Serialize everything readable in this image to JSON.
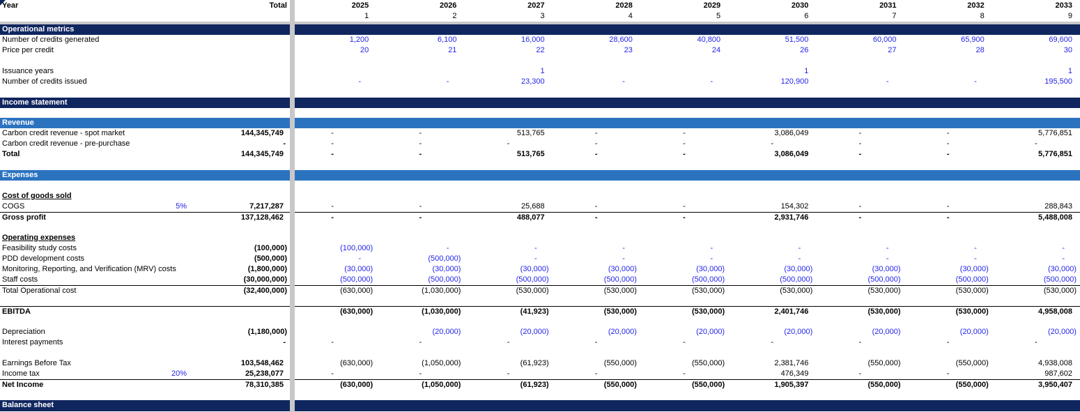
{
  "theme": {
    "navy": "#10265F",
    "blue_bar": "#2B73BF",
    "blue_text": "#2424EA",
    "freeze_divider_gray": "#C8C8C8"
  },
  "header": {
    "year_label": "Year",
    "total_label": "Total",
    "years": [
      "2025",
      "2026",
      "2027",
      "2028",
      "2029",
      "2030",
      "2031",
      "2032",
      "2033"
    ],
    "indices": [
      "1",
      "2",
      "3",
      "4",
      "5",
      "6",
      "7",
      "8",
      "9"
    ]
  },
  "rows": [
    {
      "type": "section",
      "name": "section-operational-metrics",
      "label": "Operational metrics"
    },
    {
      "type": "row",
      "name": "number-of-credits-generated",
      "label": "Number of credits generated",
      "color": "blue",
      "values": [
        "1,200",
        "6,100",
        "16,000",
        "28,600",
        "40,800",
        "51,500",
        "60,000",
        "65,900",
        "69,600"
      ]
    },
    {
      "type": "row",
      "name": "price-per-credit",
      "label": "Price per credit",
      "color": "blue",
      "values": [
        "20",
        "21",
        "22",
        "23",
        "24",
        "26",
        "27",
        "28",
        "30"
      ]
    },
    {
      "type": "blank",
      "name": "spacer"
    },
    {
      "type": "row",
      "name": "issuance-years",
      "label": "Issuance years",
      "color": "blue",
      "values": [
        "",
        "",
        "1",
        "",
        "",
        "1",
        "",
        "",
        "1"
      ]
    },
    {
      "type": "row",
      "name": "number-of-credits-issued",
      "label": "Number of credits issued",
      "color": "blue",
      "values": [
        "-",
        "-",
        "23,300",
        "-",
        "-",
        "120,900",
        "-",
        "-",
        "195,500"
      ]
    },
    {
      "type": "blank",
      "name": "spacer"
    },
    {
      "type": "section",
      "name": "section-income-statement",
      "label": "Income statement"
    },
    {
      "type": "blank",
      "name": "spacer",
      "height": 14
    },
    {
      "type": "subsection",
      "name": "subsection-revenue",
      "label": "Revenue"
    },
    {
      "type": "row",
      "name": "carbon-credit-revenue-spot-market",
      "label": "Carbon credit revenue - spot market",
      "total": "144,345,749",
      "values": [
        "-",
        "-",
        "513,765",
        "-",
        "-",
        "3,086,049",
        "-",
        "-",
        "5,776,851"
      ]
    },
    {
      "type": "row",
      "name": "carbon-credit-revenue-pre-purchase",
      "label": "Carbon credit revenue - pre-purchase",
      "total": "-",
      "values": [
        "-",
        "-",
        "-",
        "-",
        "-",
        "-",
        "-",
        "-",
        "-"
      ]
    },
    {
      "type": "row",
      "name": "revenue-total",
      "label": "Total",
      "label_bold": true,
      "bold": true,
      "total": "144,345,749",
      "values": [
        "-",
        "-",
        "513,765",
        "-",
        "-",
        "3,086,049",
        "-",
        "-",
        "5,776,851"
      ]
    },
    {
      "type": "blank",
      "name": "spacer"
    },
    {
      "type": "subsection",
      "name": "subsection-expenses",
      "label": "Expenses"
    },
    {
      "type": "blank",
      "name": "spacer"
    },
    {
      "type": "row",
      "name": "cost-of-goods-sold-heading",
      "label": "Cost of goods sold",
      "label_bold": true,
      "label_underline": true,
      "values": [
        "",
        "",
        "",
        "",
        "",
        "",
        "",
        "",
        ""
      ]
    },
    {
      "type": "row",
      "name": "cogs",
      "label": "COGS",
      "pct": "5%",
      "total": "7,217,287",
      "values": [
        "-",
        "-",
        "25,688",
        "-",
        "-",
        "154,302",
        "-",
        "-",
        "288,843"
      ]
    },
    {
      "type": "row",
      "name": "gross-profit",
      "label": "Gross profit",
      "label_bold": true,
      "bold": true,
      "border_top": true,
      "total": "137,128,462",
      "values": [
        "-",
        "-",
        "488,077",
        "-",
        "-",
        "2,931,746",
        "-",
        "-",
        "5,488,008"
      ]
    },
    {
      "type": "blank",
      "name": "spacer"
    },
    {
      "type": "row",
      "name": "operating-expenses-heading",
      "label": "Operating expenses",
      "label_bold": true,
      "label_underline": true,
      "values": [
        "",
        "",
        "",
        "",
        "",
        "",
        "",
        "",
        ""
      ]
    },
    {
      "type": "row",
      "name": "feasibility-study-costs",
      "label": "Feasibility study costs",
      "color": "blue",
      "total": "(100,000)",
      "values": [
        "(100,000)",
        "-",
        "-",
        "-",
        "-",
        "-",
        "-",
        "-",
        "-"
      ]
    },
    {
      "type": "row",
      "name": "pdd-development-costs",
      "label": "PDD development costs",
      "color": "blue",
      "total": "(500,000)",
      "values": [
        "-",
        "(500,000)",
        "-",
        "-",
        "-",
        "-",
        "-",
        "-",
        "-"
      ]
    },
    {
      "type": "row",
      "name": "mrv-costs",
      "label": "Monitoring, Reporting, and Verification (MRV) costs",
      "color": "blue",
      "total": "(1,800,000)",
      "values": [
        "(30,000)",
        "(30,000)",
        "(30,000)",
        "(30,000)",
        "(30,000)",
        "(30,000)",
        "(30,000)",
        "(30,000)",
        "(30,000)"
      ]
    },
    {
      "type": "row",
      "name": "staff-costs",
      "label": "Staff costs",
      "color": "blue",
      "total": "(30,000,000)",
      "values": [
        "(500,000)",
        "(500,000)",
        "(500,000)",
        "(500,000)",
        "(500,000)",
        "(500,000)",
        "(500,000)",
        "(500,000)",
        "(500,000)"
      ]
    },
    {
      "type": "row",
      "name": "total-operational-cost",
      "label": "Total Operational cost",
      "border_top": true,
      "total": "(32,400,000)",
      "values": [
        "(630,000)",
        "(1,030,000)",
        "(530,000)",
        "(530,000)",
        "(530,000)",
        "(530,000)",
        "(530,000)",
        "(530,000)",
        "(530,000)"
      ]
    },
    {
      "type": "blank",
      "name": "spacer"
    },
    {
      "type": "row",
      "name": "ebitda",
      "label": "EBITDA",
      "label_bold": true,
      "bold": true,
      "border_top": true,
      "total": "",
      "values": [
        "(630,000)",
        "(1,030,000)",
        "(41,923)",
        "(530,000)",
        "(530,000)",
        "2,401,746",
        "(530,000)",
        "(530,000)",
        "4,958,008"
      ]
    },
    {
      "type": "blank",
      "name": "spacer"
    },
    {
      "type": "row",
      "name": "depreciation",
      "label": "Depreciation",
      "color": "blue",
      "total": "(1,180,000)",
      "values": [
        "",
        "(20,000)",
        "(20,000)",
        "(20,000)",
        "(20,000)",
        "(20,000)",
        "(20,000)",
        "(20,000)",
        "(20,000)"
      ]
    },
    {
      "type": "row",
      "name": "interest-payments",
      "label": "Interest payments",
      "total": "-",
      "values": [
        "-",
        "-",
        "-",
        "-",
        "-",
        "-",
        "-",
        "-",
        "-"
      ]
    },
    {
      "type": "blank",
      "name": "spacer"
    },
    {
      "type": "row",
      "name": "earnings-before-tax",
      "label": "Earnings Before Tax",
      "total": "103,548,462",
      "values": [
        "(630,000)",
        "(1,050,000)",
        "(61,923)",
        "(550,000)",
        "(550,000)",
        "2,381,746",
        "(550,000)",
        "(550,000)",
        "4,938,008"
      ]
    },
    {
      "type": "row",
      "name": "income-tax",
      "label": "Income tax",
      "pct": "20%",
      "total": "25,238,077",
      "values": [
        "-",
        "-",
        "-",
        "-",
        "-",
        "476,349",
        "-",
        "-",
        "987,602"
      ]
    },
    {
      "type": "row",
      "name": "net-income",
      "label": "Net Income",
      "label_bold": true,
      "bold": true,
      "border_top": true,
      "total": "78,310,385",
      "values": [
        "(630,000)",
        "(1,050,000)",
        "(61,923)",
        "(550,000)",
        "(550,000)",
        "1,905,397",
        "(550,000)",
        "(550,000)",
        "3,950,407"
      ]
    },
    {
      "type": "blank",
      "name": "spacer"
    },
    {
      "type": "section",
      "name": "section-balance-sheet",
      "label": "Balance sheet",
      "height": 16
    }
  ]
}
